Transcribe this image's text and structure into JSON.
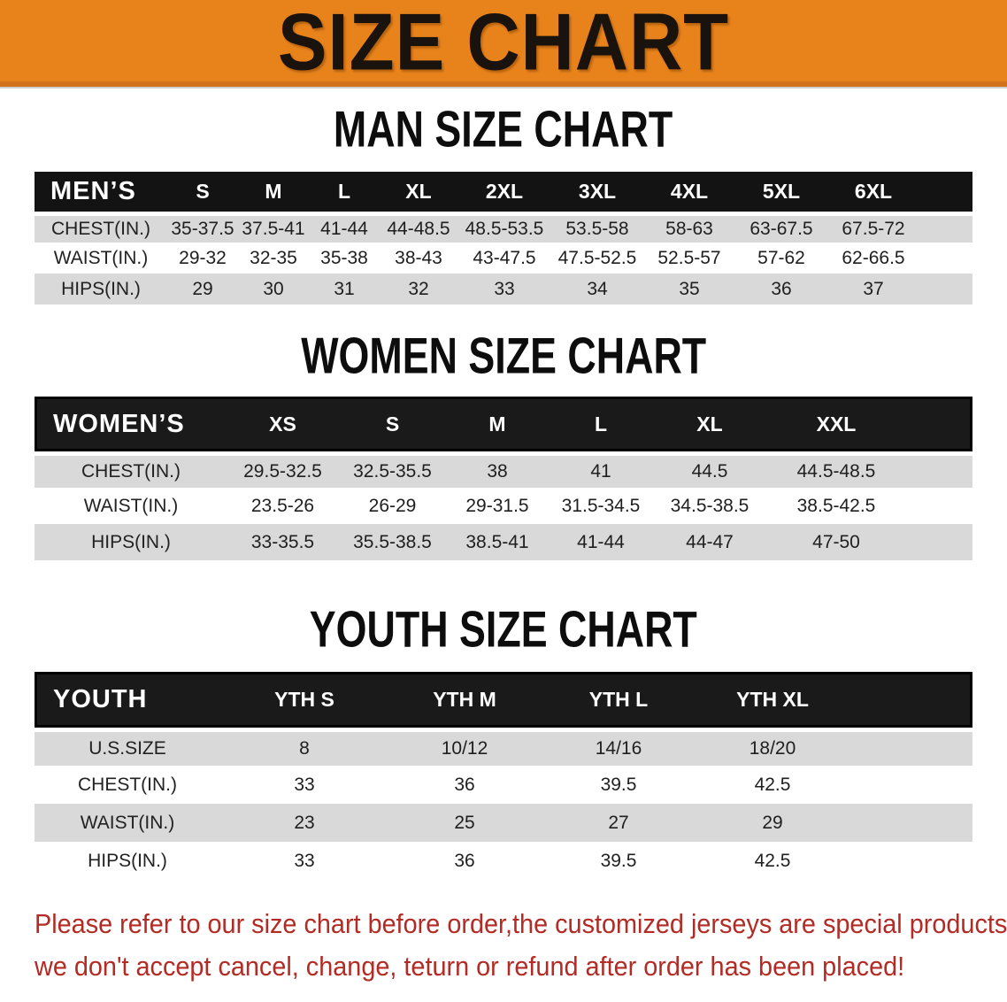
{
  "banner": {
    "title": "SIZE CHART",
    "bg_color": "#e8821b",
    "text_color": "#1a120c"
  },
  "sections": [
    {
      "id": "men",
      "title": "MAN SIZE CHART",
      "header_label": "MEN’S",
      "columns": [
        "S",
        "M",
        "L",
        "XL",
        "2XL",
        "3XL",
        "4XL",
        "5XL",
        "6XL"
      ],
      "rows": [
        {
          "label": "CHEST(IN.)",
          "values": [
            "35-37.5",
            "37.5-41",
            "41-44",
            "44-48.5",
            "48.5-53.5",
            "53.5-58",
            "58-63",
            "63-67.5",
            "67.5-72"
          ]
        },
        {
          "label": "WAIST(IN.)",
          "values": [
            "29-32",
            "32-35",
            "35-38",
            "38-43",
            "43-47.5",
            "47.5-52.5",
            "52.5-57",
            "57-62",
            "62-66.5"
          ]
        },
        {
          "label": "HIPS(IN.)",
          "values": [
            "29",
            "30",
            "31",
            "32",
            "33",
            "34",
            "35",
            "36",
            "37"
          ]
        }
      ]
    },
    {
      "id": "women",
      "title": "WOMEN SIZE CHART",
      "header_label": "WOMEN’S",
      "columns": [
        "XS",
        "S",
        "M",
        "L",
        "XL",
        "XXL"
      ],
      "rows": [
        {
          "label": "CHEST(IN.)",
          "values": [
            "29.5-32.5",
            "32.5-35.5",
            "38",
            "41",
            "44.5",
            "44.5-48.5"
          ]
        },
        {
          "label": "WAIST(IN.)",
          "values": [
            "23.5-26",
            "26-29",
            "29-31.5",
            "31.5-34.5",
            "34.5-38.5",
            "38.5-42.5"
          ]
        },
        {
          "label": "HIPS(IN.)",
          "values": [
            "33-35.5",
            "35.5-38.5",
            "38.5-41",
            "41-44",
            "44-47",
            "47-50"
          ]
        }
      ]
    },
    {
      "id": "youth",
      "title": "YOUTH SIZE CHART",
      "header_label": "YOUTH",
      "columns": [
        "YTH S",
        "YTH M",
        "YTH L",
        "YTH XL"
      ],
      "rows": [
        {
          "label": "U.S.SIZE",
          "values": [
            "8",
            "10/12",
            "14/16",
            "18/20"
          ]
        },
        {
          "label": "CHEST(IN.)",
          "values": [
            "33",
            "36",
            "39.5",
            "42.5"
          ]
        },
        {
          "label": "WAIST(IN.)",
          "values": [
            "23",
            "25",
            "27",
            "29"
          ]
        },
        {
          "label": "HIPS(IN.)",
          "values": [
            "33",
            "36",
            "39.5",
            "42.5"
          ]
        }
      ]
    }
  ],
  "disclaimer": {
    "color": "#b32b24",
    "lines": [
      "Please refer to our size chart before order,the customized jerseys are special products,",
      "we don't accept cancel, change, teturn or refund after order has been placed!"
    ]
  },
  "colors": {
    "banner_orange": "#e8821b",
    "banner_border": "#d2731b",
    "header_black": "#131313",
    "stripe_gray": "#d9d9d9",
    "disclaimer_red": "#b32b24"
  }
}
